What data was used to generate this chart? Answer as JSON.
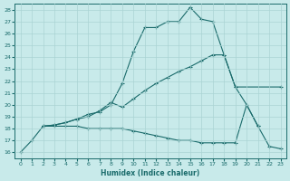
{
  "xlabel": "Humidex (Indice chaleur)",
  "bg_color": "#c8eaea",
  "line_color": "#1a6b6b",
  "grid_color": "#aad4d4",
  "xlim": [
    -0.5,
    23.5
  ],
  "ylim": [
    15.5,
    28.5
  ],
  "xticks": [
    0,
    1,
    2,
    3,
    4,
    5,
    6,
    7,
    8,
    9,
    10,
    11,
    12,
    13,
    14,
    15,
    16,
    17,
    18,
    19,
    20,
    21,
    22,
    23
  ],
  "yticks": [
    16,
    17,
    18,
    19,
    20,
    21,
    22,
    23,
    24,
    25,
    26,
    27,
    28
  ],
  "line1_x": [
    0,
    1,
    2,
    3,
    4,
    5,
    6,
    7,
    8,
    9,
    10,
    11,
    12,
    13,
    14,
    15,
    16,
    17,
    18,
    19,
    20,
    21
  ],
  "line1_y": [
    16,
    17,
    18.2,
    18.3,
    18.5,
    18.8,
    19.2,
    19.4,
    20.0,
    21.8,
    24.5,
    26.5,
    26.5,
    27.0,
    27.0,
    28.2,
    27.2,
    27.0,
    24.2,
    21.5,
    20.0,
    18.2
  ],
  "line2_x": [
    2,
    3,
    4,
    5,
    6,
    7,
    8,
    9,
    10,
    11,
    12,
    13,
    14,
    15,
    16,
    17,
    18,
    19,
    23
  ],
  "line2_y": [
    18.2,
    18.3,
    18.5,
    18.8,
    19.0,
    19.5,
    20.2,
    19.8,
    20.5,
    21.2,
    21.8,
    22.3,
    22.8,
    23.2,
    23.7,
    24.2,
    24.2,
    21.5,
    21.5
  ],
  "line3_x": [
    2,
    3,
    4,
    5,
    6,
    7,
    8,
    9,
    10,
    11,
    12,
    13,
    14,
    15,
    16,
    17,
    18,
    19,
    20,
    21,
    22,
    23
  ],
  "line3_y": [
    18.2,
    18.2,
    18.2,
    18.2,
    18.0,
    18.0,
    18.0,
    18.0,
    17.8,
    17.6,
    17.4,
    17.2,
    17.0,
    17.0,
    16.8,
    16.8,
    16.8,
    16.8,
    20.0,
    18.2,
    16.5,
    16.3
  ]
}
